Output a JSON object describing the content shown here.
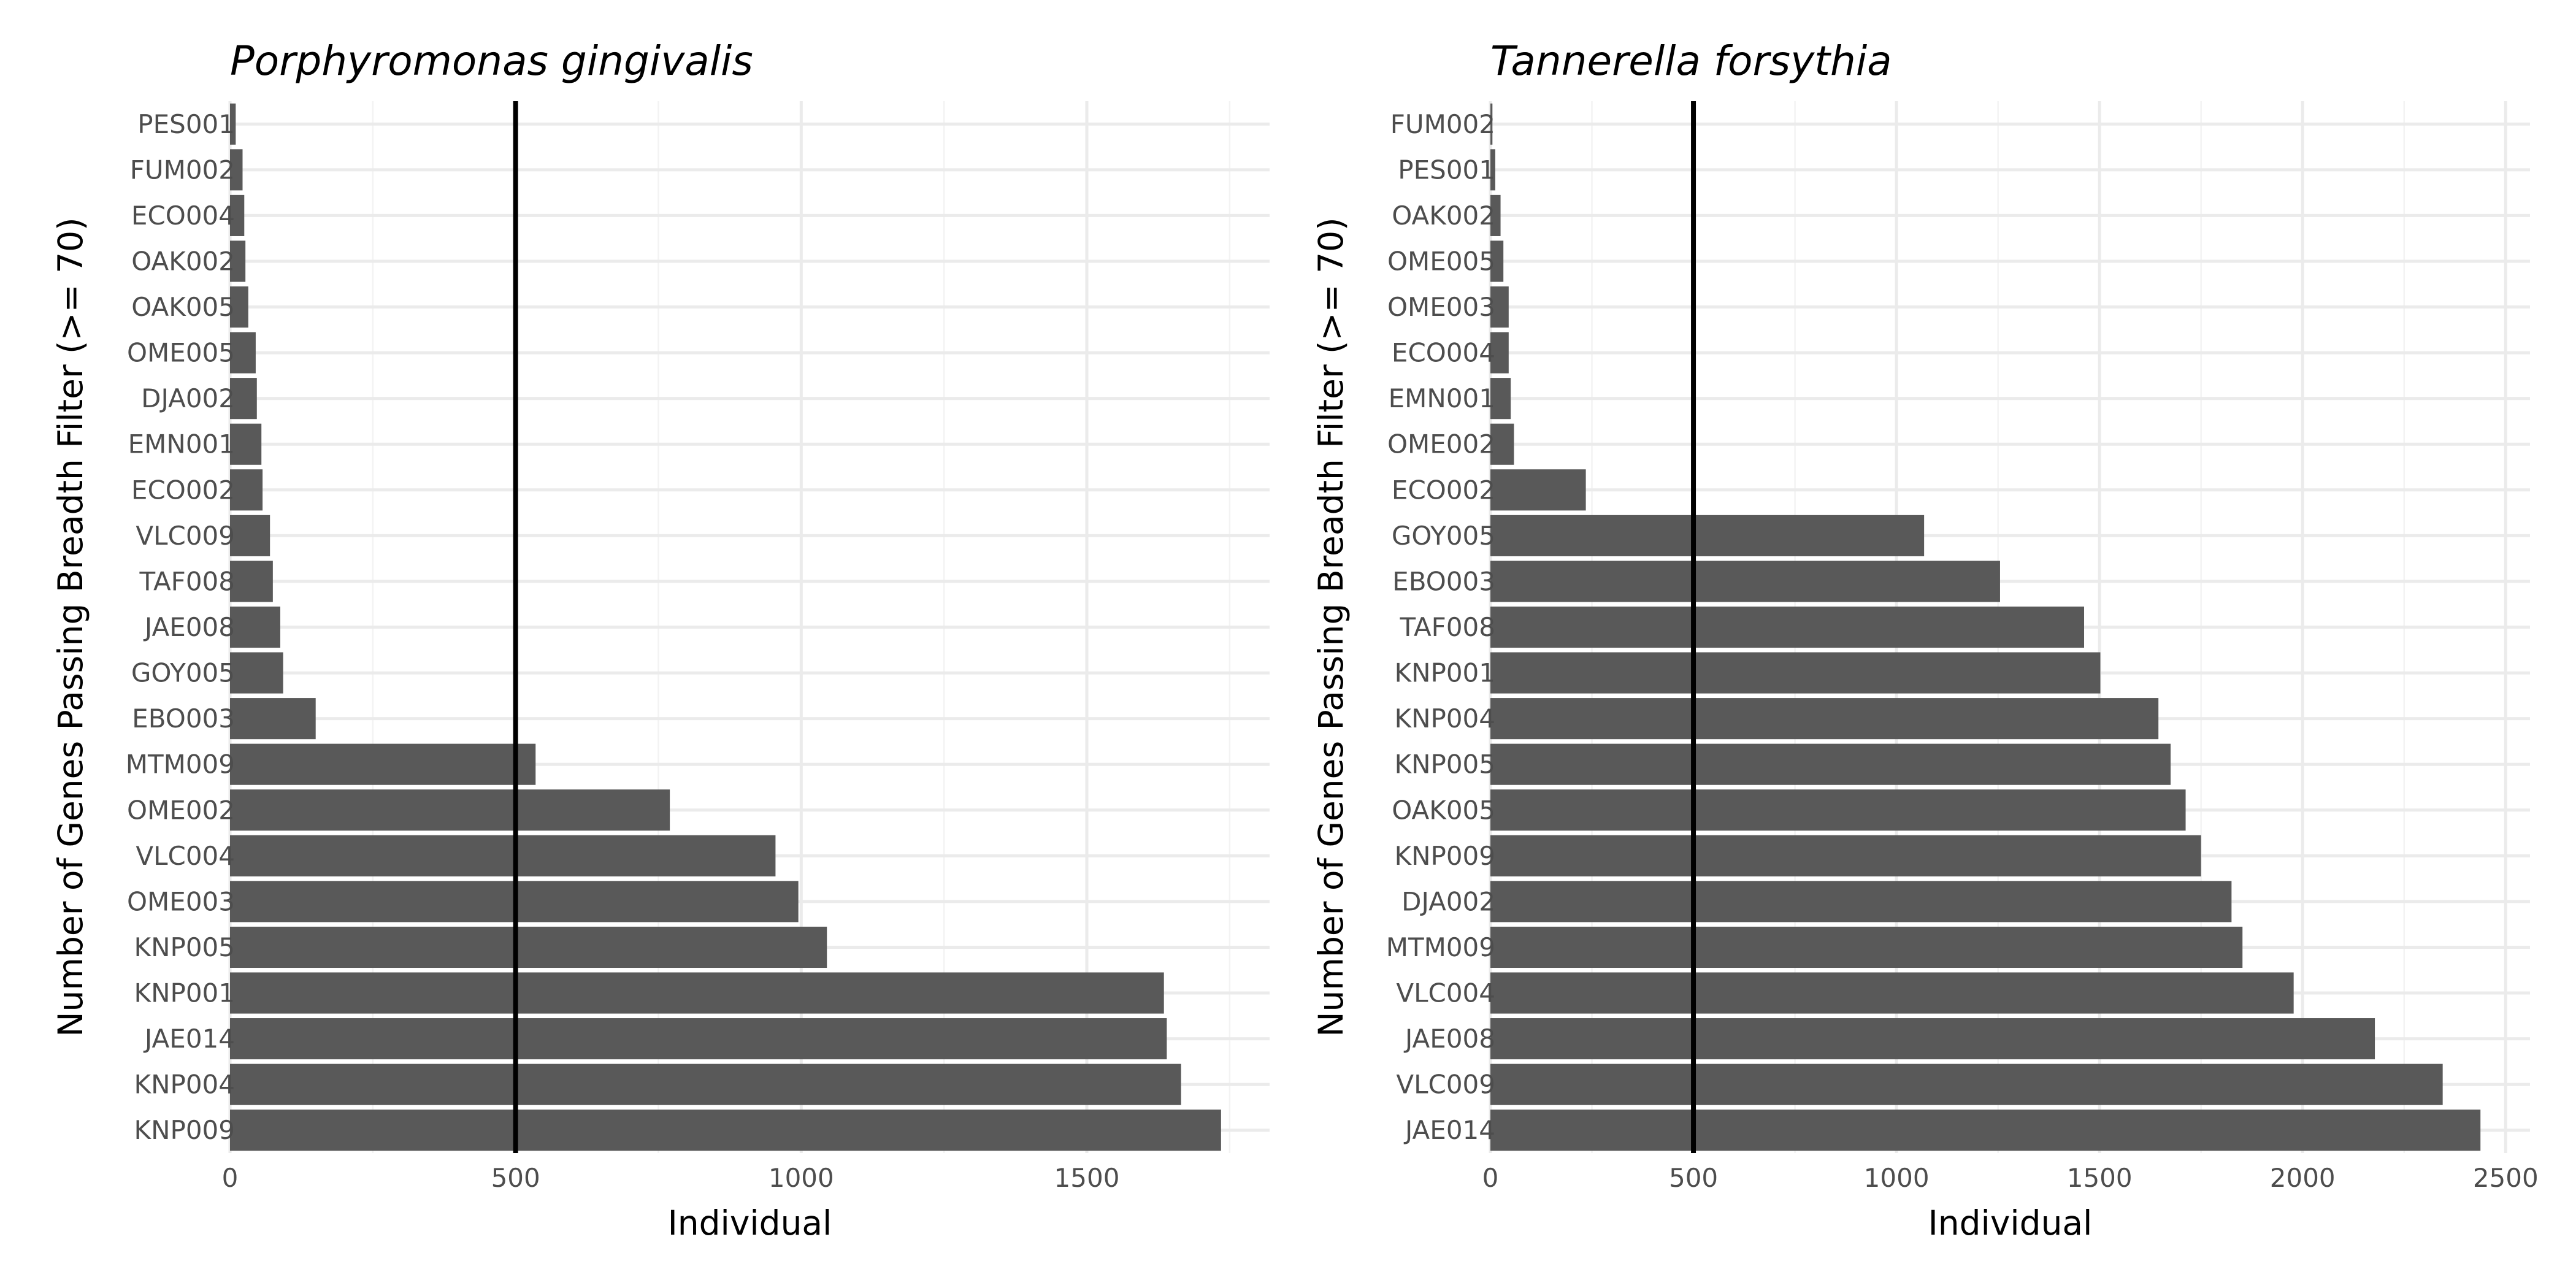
{
  "chart_data": [
    {
      "type": "bar",
      "orientation": "horizontal",
      "title": "Porphyromonas gingivalis",
      "xlabel": "Individual",
      "ylabel": "Number of Genes Passing Breadth Filter (>= 70)",
      "xlim": [
        0,
        1820
      ],
      "x_ticks": [
        0,
        500,
        1000,
        1500
      ],
      "reference_line": 500,
      "grid": true,
      "categories": [
        "PES001",
        "FUM002",
        "ECO004",
        "OAK002",
        "OAK005",
        "OME005",
        "DJA002",
        "EMN001",
        "ECO002",
        "VLC009",
        "TAF008",
        "JAE008",
        "GOY005",
        "EBO003",
        "MTM009",
        "OME002",
        "VLC004",
        "OME003",
        "KNP005",
        "KNP001",
        "JAE014",
        "KNP004",
        "KNP009"
      ],
      "values": [
        10,
        22,
        25,
        27,
        32,
        45,
        47,
        55,
        57,
        70,
        75,
        88,
        93,
        150,
        535,
        770,
        955,
        995,
        1045,
        1635,
        1640,
        1665,
        1735
      ]
    },
    {
      "type": "bar",
      "orientation": "horizontal",
      "title": "Tannerella forsythia",
      "xlabel": "Individual",
      "ylabel": "Number of Genes Passing Breadth Filter (>= 70)",
      "xlim": [
        0,
        2560
      ],
      "x_ticks": [
        0,
        500,
        1000,
        1500,
        2000,
        2500
      ],
      "reference_line": 500,
      "grid": true,
      "categories": [
        "FUM002",
        "PES001",
        "OAK002",
        "OME005",
        "OME003",
        "ECO004",
        "EMN001",
        "OME002",
        "ECO002",
        "GOY005",
        "EBO003",
        "TAF008",
        "KNP001",
        "KNP004",
        "KNP005",
        "OAK005",
        "KNP009",
        "DJA002",
        "MTM009",
        "VLC004",
        "JAE008",
        "VLC009",
        "JAE014"
      ],
      "values": [
        5,
        12,
        25,
        32,
        45,
        45,
        50,
        58,
        235,
        1068,
        1255,
        1462,
        1502,
        1645,
        1675,
        1712,
        1750,
        1825,
        1852,
        1978,
        2178,
        2345,
        2438
      ]
    }
  ]
}
